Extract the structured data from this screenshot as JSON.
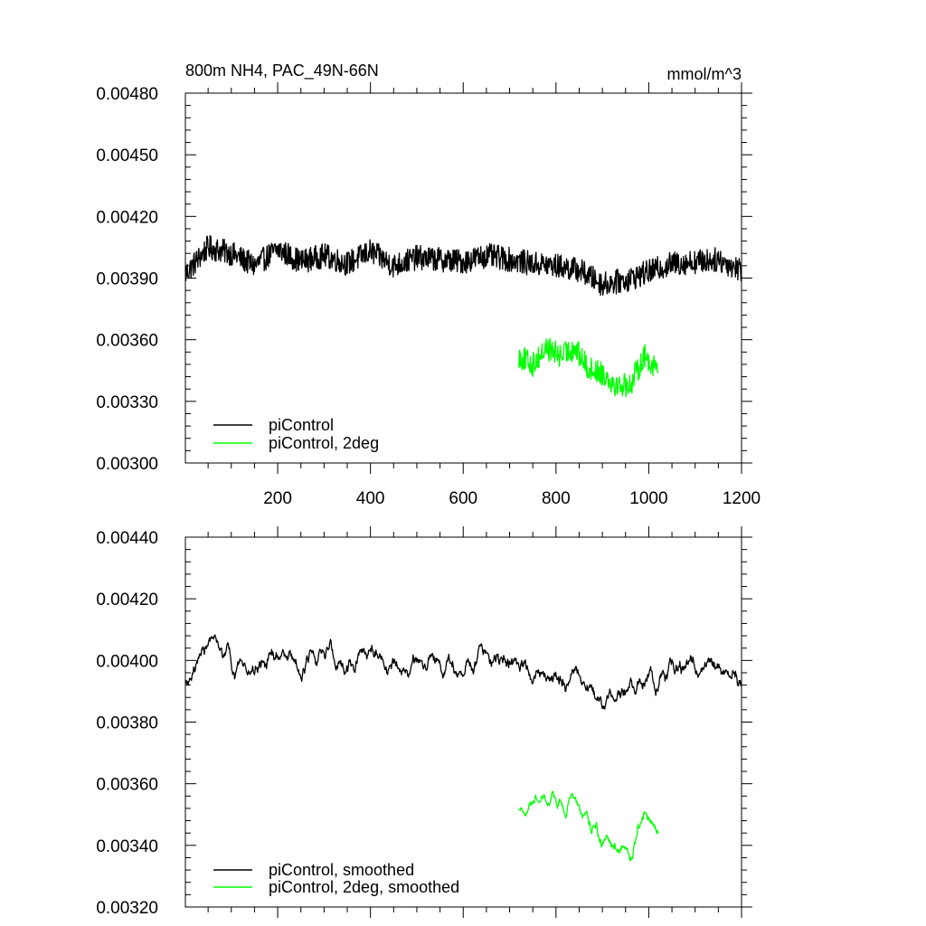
{
  "chart_data": [
    {
      "type": "line",
      "title": "800m NH4, PAC_49N-66N",
      "units": "mmol/m^3",
      "xlim": [
        1,
        1200
      ],
      "ylim": [
        0.003,
        0.0048
      ],
      "x_ticks": [
        200,
        400,
        600,
        800,
        1000,
        1200
      ],
      "x_tick_labels": [
        "200",
        "400",
        "600",
        "800",
        "1000",
        "1200"
      ],
      "y_ticks": [
        0.003,
        0.0033,
        0.0036,
        0.0039,
        0.0042,
        0.0045,
        0.0048
      ],
      "y_tick_labels": [
        "0.00300",
        "0.00330",
        "0.00360",
        "0.00390",
        "0.00420",
        "0.00450",
        "0.00480"
      ],
      "legend_position": "bottom-left",
      "series": [
        {
          "name": "piControl",
          "color": "#000000",
          "x": [
            1,
            50,
            100,
            150,
            200,
            250,
            300,
            350,
            400,
            450,
            500,
            550,
            600,
            650,
            700,
            750,
            800,
            850,
            900,
            950,
            1000,
            1050,
            1100,
            1150,
            1200
          ],
          "y": [
            0.00392,
            0.00405,
            0.00402,
            0.00396,
            0.00404,
            0.00398,
            0.00401,
            0.00397,
            0.00403,
            0.00396,
            0.004,
            0.00399,
            0.00398,
            0.00401,
            0.00399,
            0.00397,
            0.00396,
            0.00394,
            0.00387,
            0.00389,
            0.00393,
            0.00397,
            0.00398,
            0.00399,
            0.00394
          ],
          "amplitude": 0.00012
        },
        {
          "name": "piControl, 2deg",
          "color": "#00ff00",
          "x": [
            720,
            750,
            780,
            810,
            840,
            870,
            900,
            930,
            960,
            990,
            1020
          ],
          "y": [
            0.00352,
            0.00348,
            0.00356,
            0.00352,
            0.00356,
            0.00346,
            0.00344,
            0.00338,
            0.00338,
            0.00352,
            0.00346
          ],
          "amplitude": 0.00012
        }
      ]
    },
    {
      "type": "line",
      "xlim": [
        1,
        1200
      ],
      "ylim": [
        0.0032,
        0.0044
      ],
      "x_ticks": [
        200,
        400,
        600,
        800,
        1000,
        1200
      ],
      "y_ticks": [
        0.0032,
        0.0034,
        0.0036,
        0.0038,
        0.004,
        0.0042,
        0.0044
      ],
      "y_tick_labels": [
        "0.00320",
        "0.00340",
        "0.00360",
        "0.00380",
        "0.00400",
        "0.00420",
        "0.00440"
      ],
      "legend_position": "bottom-left",
      "series": [
        {
          "name": "piControl, smoothed",
          "color": "#000000",
          "x": [
            1,
            50,
            100,
            150,
            200,
            250,
            300,
            350,
            400,
            450,
            500,
            550,
            600,
            650,
            700,
            750,
            800,
            850,
            900,
            950,
            1000,
            1050,
            1100,
            1150,
            1200
          ],
          "y": [
            0.00392,
            0.00406,
            0.00402,
            0.00396,
            0.00404,
            0.00398,
            0.00401,
            0.00397,
            0.00403,
            0.00396,
            0.004,
            0.00399,
            0.00398,
            0.00401,
            0.00399,
            0.00397,
            0.00396,
            0.00394,
            0.00387,
            0.00389,
            0.00393,
            0.00397,
            0.00398,
            0.00399,
            0.00394
          ],
          "amplitude": 0.0001
        },
        {
          "name": "piControl, 2deg, smoothed",
          "color": "#00ff00",
          "x": [
            720,
            750,
            780,
            810,
            840,
            870,
            900,
            930,
            960,
            990,
            1020
          ],
          "y": [
            0.00353,
            0.00352,
            0.00354,
            0.00352,
            0.00356,
            0.00348,
            0.00342,
            0.00338,
            0.00336,
            0.0035,
            0.00346
          ],
          "amplitude": 9e-05
        }
      ]
    }
  ]
}
